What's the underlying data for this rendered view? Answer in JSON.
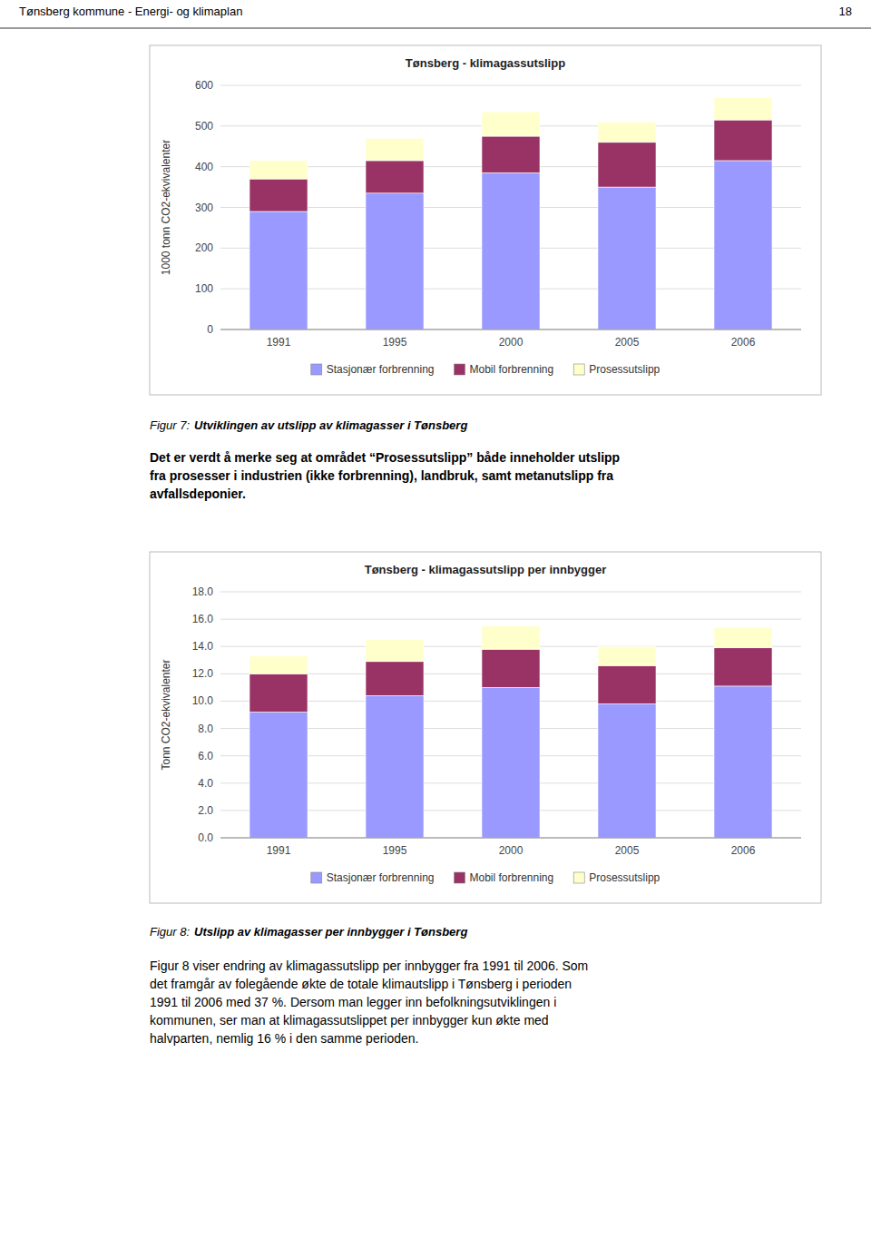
{
  "page_header": "Tønsberg kommune - Energi- og klimaplan",
  "page_number": "18",
  "chart_data": [
    {
      "type": "bar",
      "stacked": true,
      "grid": true,
      "legend": "bottom",
      "title": "Tønsberg - klimagassutslipp",
      "ylabel": "1000 tonn CO2-ekvivalenter",
      "categories": [
        "1991",
        "1995",
        "2000",
        "2005",
        "2006"
      ],
      "series": [
        {
          "name": "Stasjonær forbrenning",
          "color": "#9999FF",
          "values": [
            290,
            335,
            385,
            350,
            415
          ]
        },
        {
          "name": "Mobil forbrenning",
          "color": "#993366",
          "values": [
            80,
            80,
            90,
            110,
            100
          ]
        },
        {
          "name": "Prosessutslipp",
          "color": "#FFFFCC",
          "values": [
            45,
            55,
            60,
            50,
            55
          ]
        }
      ],
      "ylim": [
        0,
        600
      ],
      "yticks": [
        0,
        100,
        200,
        300,
        400,
        500,
        600
      ]
    },
    {
      "type": "bar",
      "stacked": true,
      "grid": true,
      "legend": "bottom",
      "title": "Tønsberg - klimagassutslipp per innbygger",
      "ylabel": "Tonn CO2-ekvivalenter",
      "categories": [
        "1991",
        "1995",
        "2000",
        "2005",
        "2006"
      ],
      "series": [
        {
          "name": "Stasjonær forbrenning",
          "color": "#9999FF",
          "values": [
            9.2,
            10.4,
            11.0,
            9.8,
            11.1
          ]
        },
        {
          "name": "Mobil forbrenning",
          "color": "#993366",
          "values": [
            2.8,
            2.5,
            2.8,
            2.8,
            2.8
          ]
        },
        {
          "name": "Prosessutslipp",
          "color": "#FFFFCC",
          "values": [
            1.3,
            1.6,
            1.7,
            1.4,
            1.5
          ]
        }
      ],
      "ylim": [
        0,
        18
      ],
      "yticks": [
        {
          "value": 0,
          "label": "0.0"
        },
        {
          "value": 2,
          "label": "2.0"
        },
        {
          "value": 4,
          "label": "4.0"
        },
        {
          "value": 6,
          "label": "6.0"
        },
        {
          "value": 8,
          "label": "8.0"
        },
        {
          "value": 10,
          "label": "10.0"
        },
        {
          "value": 12,
          "label": "12.0"
        },
        {
          "value": 14,
          "label": "14.0"
        },
        {
          "value": 16,
          "label": "16.0"
        },
        {
          "value": 18,
          "label": "18.0"
        }
      ]
    }
  ],
  "captions": [
    {
      "label": "Figur 7:",
      "text": "Utviklingen av utslipp av klimagasser i Tønsberg"
    },
    {
      "label": "Figur 8:",
      "text": "Utslipp av klimagasser per innbygger i Tønsberg"
    }
  ],
  "paragraphs": [
    [
      "Det er verdt å merke seg at området “Prosessutslipp” både inneholder utslipp",
      "fra prosesser i industrien (ikke forbrenning), landbruk, samt metanutslipp fra",
      "avfallsdeponier."
    ],
    [
      "Figur 8 viser endring av klimagassutslipp per innbygger fra 1991 til 2006. Som",
      "det framgår av folegående økte de totale klimautslipp i Tønsberg i perioden",
      "1991 til 2006 med 37 %. Dersom man legger inn befolkningsutviklingen i",
      "kommunen, ser man at klimagassutslippet per innbygger kun økte med",
      "halvparten, nemlig 16 % i den samme perioden."
    ]
  ]
}
